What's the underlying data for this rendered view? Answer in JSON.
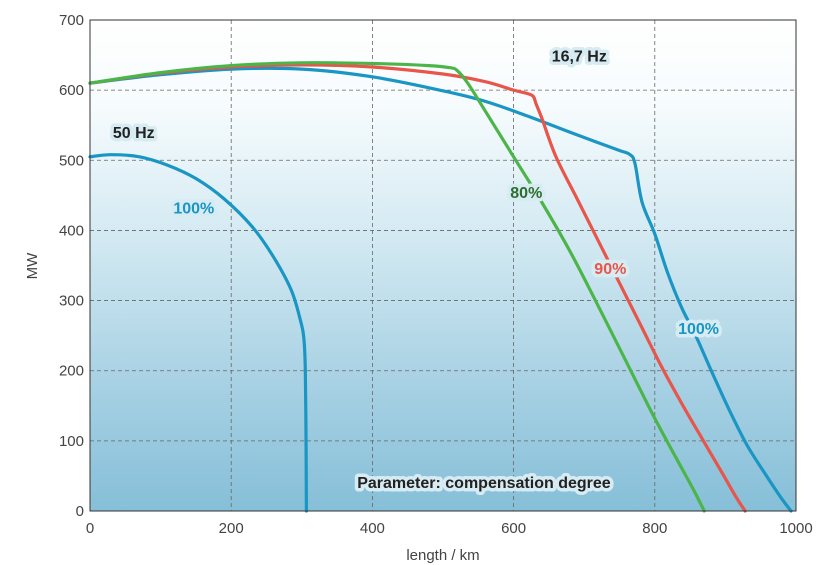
{
  "chart_data": {
    "type": "line",
    "title": "",
    "xlabel": "length / km",
    "ylabel": "MW",
    "xlim": [
      0,
      1000
    ],
    "ylim": [
      0,
      700
    ],
    "xticks": [
      "0",
      "200",
      "400",
      "600",
      "800",
      "1000"
    ],
    "yticks": [
      "0",
      "100",
      "200",
      "300",
      "400",
      "500",
      "600",
      "700"
    ],
    "grid": true,
    "background": "gradient light-blue to deep-blue",
    "series": [
      {
        "group": "50 Hz",
        "name": "100%",
        "color": "#1a96c4",
        "points": [
          [
            0,
            505
          ],
          [
            30,
            508
          ],
          [
            70,
            505
          ],
          [
            110,
            493
          ],
          [
            150,
            474
          ],
          [
            190,
            445
          ],
          [
            230,
            405
          ],
          [
            260,
            362
          ],
          [
            285,
            315
          ],
          [
            298,
            272
          ],
          [
            303,
            245
          ],
          [
            305,
            200
          ],
          [
            306,
            100
          ],
          [
            306.5,
            0
          ]
        ]
      },
      {
        "group": "16,7 Hz",
        "name": "100%",
        "color": "#1a96c4",
        "points": [
          [
            0,
            610
          ],
          [
            100,
            622
          ],
          [
            200,
            630
          ],
          [
            300,
            630
          ],
          [
            400,
            619
          ],
          [
            500,
            599
          ],
          [
            560,
            584
          ],
          [
            620,
            563
          ],
          [
            680,
            540
          ],
          [
            720,
            525
          ],
          [
            750,
            514
          ],
          [
            765,
            508
          ],
          [
            772,
            495
          ],
          [
            782,
            440
          ],
          [
            800,
            395
          ],
          [
            818,
            340
          ],
          [
            838,
            290
          ],
          [
            858,
            250
          ],
          [
            880,
            200
          ],
          [
            905,
            145
          ],
          [
            930,
            95
          ],
          [
            955,
            55
          ],
          [
            978,
            20
          ],
          [
            993,
            0
          ]
        ]
      },
      {
        "group": "16,7 Hz",
        "name": "90%",
        "color": "#e8554a",
        "points": [
          [
            0,
            610
          ],
          [
            100,
            624
          ],
          [
            200,
            633
          ],
          [
            300,
            636
          ],
          [
            400,
            633
          ],
          [
            500,
            623
          ],
          [
            560,
            612
          ],
          [
            600,
            600
          ],
          [
            620,
            595
          ],
          [
            628,
            591
          ],
          [
            632,
            580
          ],
          [
            640,
            560
          ],
          [
            660,
            505
          ],
          [
            690,
            445
          ],
          [
            720,
            385
          ],
          [
            750,
            325
          ],
          [
            780,
            265
          ],
          [
            810,
            205
          ],
          [
            840,
            150
          ],
          [
            870,
            98
          ],
          [
            895,
            55
          ],
          [
            915,
            20
          ],
          [
            928,
            0
          ]
        ]
      },
      {
        "group": "16,7 Hz",
        "name": "80%",
        "color": "#4cb54a",
        "points": [
          [
            0,
            610
          ],
          [
            100,
            625
          ],
          [
            200,
            635
          ],
          [
            300,
            639
          ],
          [
            400,
            638
          ],
          [
            480,
            635
          ],
          [
            510,
            632
          ],
          [
            520,
            628
          ],
          [
            535,
            610
          ],
          [
            560,
            570
          ],
          [
            600,
            505
          ],
          [
            640,
            440
          ],
          [
            680,
            370
          ],
          [
            720,
            292
          ],
          [
            760,
            212
          ],
          [
            800,
            132
          ],
          [
            830,
            76
          ],
          [
            855,
            30
          ],
          [
            870,
            0
          ]
        ]
      }
    ],
    "annotations": [
      {
        "text": "50 Hz",
        "x": 62,
        "y": 532,
        "color": "#222222"
      },
      {
        "text": "100%",
        "x": 147,
        "y": 424,
        "color": "#1a96c4"
      },
      {
        "text": "16,7 Hz",
        "x": 693,
        "y": 641,
        "color": "#222222"
      },
      {
        "text": "80%",
        "x": 618,
        "y": 446,
        "color": "#2e6e2e"
      },
      {
        "text": "90%",
        "x": 737,
        "y": 338,
        "color": "#e8554a"
      },
      {
        "text": "100%",
        "x": 862,
        "y": 252,
        "color": "#1a96c4"
      },
      {
        "text": "Parameter: compensation degree",
        "x": 558,
        "y": 33,
        "color": "#222222"
      }
    ]
  }
}
